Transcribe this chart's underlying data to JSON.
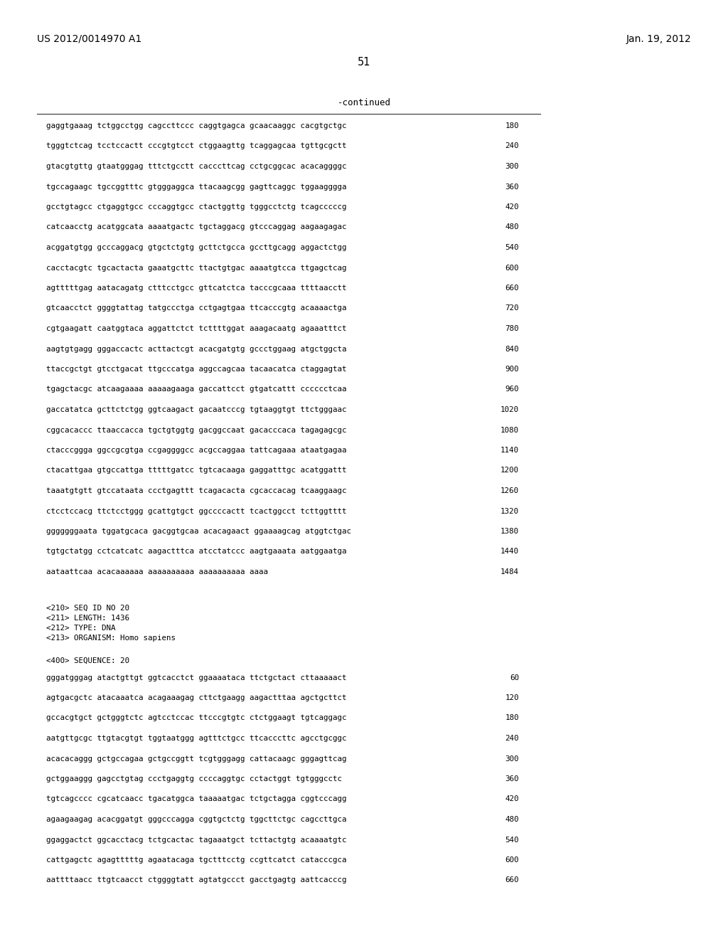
{
  "header_left": "US 2012/0014970 A1",
  "header_right": "Jan. 19, 2012",
  "page_number": "51",
  "continued_label": "-continued",
  "bg_color": "#ffffff",
  "text_color": "#000000",
  "seq1_lines": [
    [
      "gaggtgaaag tctggcctgg cagccttccc caggtgagca gcaacaaggc cacgtgctgc",
      "180"
    ],
    [
      "tgggtctcag tcctccactt cccgtgtcct ctggaagttg tcaggagcaa tgttgcgctt",
      "240"
    ],
    [
      "gtacgtgttg gtaatgggag tttctgcctt cacccttcag cctgcggcac acacaggggc",
      "300"
    ],
    [
      "tgccagaagc tgccggtttc gtgggaggca ttacaagcgg gagttcaggc tggaagggga",
      "360"
    ],
    [
      "gcctgtagcc ctgaggtgcc cccaggtgcc ctactggttg tgggcctctg tcagcccccg",
      "420"
    ],
    [
      "catcaacctg acatggcata aaaatgactc tgctaggacg gtcccaggag aagaagagac",
      "480"
    ],
    [
      "acggatgtgg gcccaggacg gtgctctgtg gcttctgcca gccttgcagg aggactctgg",
      "540"
    ],
    [
      "cacctacgtc tgcactacta gaaatgcttc ttactgtgac aaaatgtcca ttgagctcag",
      "600"
    ],
    [
      "agtttttgag aatacagatg ctttcctgcc gttcatctca tacccgcaaa ttttaacctt",
      "660"
    ],
    [
      "gtcaacctct ggggtattag tatgccctga cctgagtgaa ttcacccgtg acaaaactga",
      "720"
    ],
    [
      "cgtgaagatt caatggtaca aggattctct tcttttggat aaagacaatg agaaatttct",
      "780"
    ],
    [
      "aagtgtgagg gggaccactc acttactcgt acacgatgtg gccctggaag atgctggcta",
      "840"
    ],
    [
      "ttaccgctgt gtcctgacat ttgcccatga aggccagcaa tacaacatca ctaggagtat",
      "900"
    ],
    [
      "tgagctacgc atcaagaaaa aaaaagaaga gaccattcct gtgatcattt cccccctcaa",
      "960"
    ],
    [
      "gaccatatca gcttctctgg ggtcaagact gacaatcccg tgtaaggtgt ttctgggaac",
      "1020"
    ],
    [
      "cggcacaccc ttaaccacca tgctgtggtg gacggccaat gacacccaca tagagagcgc",
      "1080"
    ],
    [
      "ctacccggga ggccgcgtga ccgaggggcc acgccaggaa tattcagaaa ataatgagaa",
      "1140"
    ],
    [
      "ctacattgaa gtgccattga tttttgatcc tgtcacaaga gaggatttgc acatggattt",
      "1200"
    ],
    [
      "taaatgtgtt gtccataata ccctgagttt tcagacacta cgcaccacag tcaaggaagc",
      "1260"
    ],
    [
      "ctcctccacg ttctcctggg gcattgtgct ggccccactt tcactggcct tcttggtttt",
      "1320"
    ],
    [
      "gggggggaata tggatgcaca gacggtgcaa acacagaact ggaaaagcag atggtctgac",
      "1380"
    ],
    [
      "tgtgctatgg cctcatcatc aagactttca atcctatccc aagtgaaata aatggaatga",
      "1440"
    ],
    [
      "aataattcaa acacaaaaaa aaaaaaaaaa aaaaaaaaaa aaaa",
      "1484"
    ]
  ],
  "metadata": [
    "<210> SEQ ID NO 20",
    "<211> LENGTH: 1436",
    "<212> TYPE: DNA",
    "<213> ORGANISM: Homo sapiens"
  ],
  "seq_label": "<400> SEQUENCE: 20",
  "seq2_lines": [
    [
      "gggatgggag atactgttgt ggtcacctct ggaaaataca ttctgctact cttaaaaact",
      "60"
    ],
    [
      "agtgacgctc atacaaatca acagaaagag cttctgaagg aagactttaa agctgcttct",
      "120"
    ],
    [
      "gccacgtgct gctgggtctc agtcctccac ttcccgtgtc ctctggaagt tgtcaggagc",
      "180"
    ],
    [
      "aatgttgcgc ttgtacgtgt tggtaatggg agtttctgcc ttcacccttc agcctgcggc",
      "240"
    ],
    [
      "acacacaggg gctgccagaa gctgccggtt tcgtgggagg cattacaagc gggagttcag",
      "300"
    ],
    [
      "gctggaaggg gagcctgtag ccctgaggtg ccccaggtgc cctactggt tgtgggcctc",
      "360"
    ],
    [
      "tgtcagcccc cgcatcaacc tgacatggca taaaaatgac tctgctagga cggtcccagg",
      "420"
    ],
    [
      "agaagaagag acacggatgt gggcccagga cggtgctctg tggcttctgc cagccttgca",
      "480"
    ],
    [
      "ggaggactct ggcacctacg tctgcactac tagaaatgct tcttactgtg acaaaatgtc",
      "540"
    ],
    [
      "cattgagctc agagtttttg agaatacaga tgctttcctg ccgttcatct catacccgca",
      "600"
    ],
    [
      "aattttaacc ttgtcaacct ctggggtatt agtatgccct gacctgagtg aattcacccg",
      "660"
    ]
  ]
}
